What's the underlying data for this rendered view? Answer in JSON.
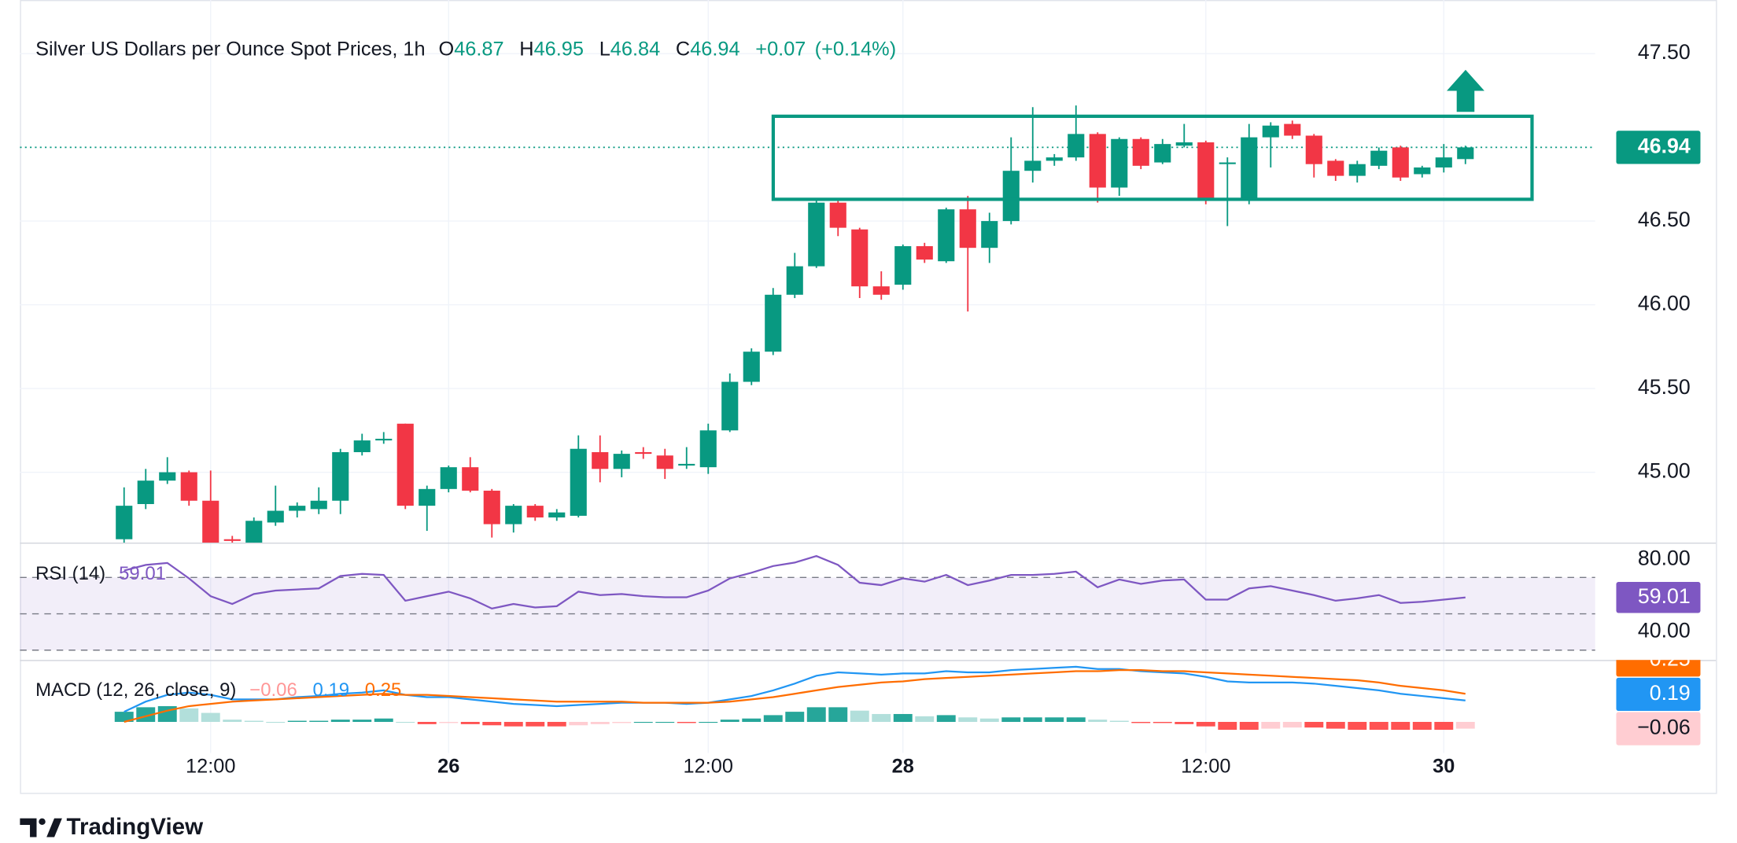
{
  "chart_data": {
    "type": "candlestick",
    "title": "Silver US Dollars per Ounce Spot Prices, 1h",
    "legend": {
      "open_label": "O",
      "open": 46.87,
      "high_label": "H",
      "high": 46.95,
      "low_label": "L",
      "low": 46.84,
      "close_label": "C",
      "close": 46.94,
      "change": {
        "value": 0.07,
        "label": "+0.07"
      },
      "change_pct": {
        "value": 0.14,
        "label": "(+0.14%)"
      }
    },
    "categories": [
      null,
      null,
      null,
      null,
      "12:00",
      null,
      null,
      null,
      null,
      null,
      null,
      null,
      null,
      null,
      null,
      "26",
      null,
      null,
      null,
      null,
      null,
      null,
      null,
      null,
      null,
      null,
      null,
      "12:00",
      null,
      null,
      null,
      null,
      null,
      null,
      null,
      null,
      "28",
      null,
      null,
      null,
      null,
      null,
      null,
      null,
      null,
      null,
      null,
      null,
      null,
      null,
      "12:00",
      null,
      null,
      null,
      null,
      null,
      null,
      null,
      null,
      null,
      null,
      "30",
      null
    ],
    "open": [
      44.6,
      44.81,
      44.95,
      45.0,
      44.83,
      44.6,
      44.58,
      44.7,
      44.77,
      44.78,
      44.83,
      45.12,
      45.19,
      45.29,
      44.8,
      44.9,
      45.03,
      44.89,
      44.69,
      44.8,
      44.73,
      44.74,
      45.12,
      45.02,
      45.12,
      45.1,
      45.04,
      45.03,
      45.25,
      45.54,
      45.72,
      46.06,
      46.23,
      46.61,
      46.45,
      46.11,
      46.12,
      46.35,
      46.26,
      46.57,
      46.34,
      46.5,
      46.8,
      46.86,
      46.88,
      47.02,
      46.7,
      46.99,
      46.85,
      46.95,
      46.97,
      46.84,
      46.63,
      47.0,
      47.08,
      47.01,
      46.86,
      46.77,
      46.83,
      46.94,
      46.78,
      46.82,
      46.87
    ],
    "high": [
      44.91,
      45.02,
      45.09,
      45.01,
      45.01,
      44.62,
      44.73,
      44.92,
      44.82,
      44.91,
      45.14,
      45.23,
      45.24,
      45.29,
      44.92,
      45.04,
      45.09,
      44.9,
      44.81,
      44.81,
      44.78,
      45.22,
      45.22,
      45.13,
      45.15,
      45.14,
      45.15,
      45.29,
      45.59,
      45.74,
      46.1,
      46.31,
      46.62,
      46.62,
      46.46,
      46.2,
      46.36,
      46.37,
      46.58,
      46.65,
      46.55,
      47.0,
      47.18,
      46.9,
      47.19,
      47.03,
      47.0,
      47.0,
      46.99,
      47.08,
      46.98,
      46.88,
      47.08,
      47.09,
      47.1,
      47.02,
      46.87,
      46.86,
      46.94,
      46.95,
      46.83,
      46.96,
      46.95
    ],
    "low": [
      44.55,
      44.78,
      44.93,
      44.8,
      44.55,
      44.55,
      44.55,
      44.68,
      44.73,
      44.75,
      44.75,
      45.1,
      45.17,
      44.78,
      44.65,
      44.88,
      44.88,
      44.61,
      44.64,
      44.71,
      44.71,
      44.73,
      44.94,
      44.97,
      45.08,
      44.96,
      45.02,
      44.99,
      45.24,
      45.52,
      45.7,
      46.04,
      46.22,
      46.41,
      46.04,
      46.03,
      46.09,
      46.25,
      46.25,
      45.96,
      46.25,
      46.48,
      46.73,
      46.83,
      46.86,
      46.61,
      46.65,
      46.81,
      46.84,
      46.94,
      46.6,
      46.47,
      46.6,
      46.82,
      46.99,
      46.76,
      46.74,
      46.73,
      46.81,
      46.74,
      46.76,
      46.79,
      46.84
    ],
    "close": [
      44.8,
      44.95,
      45.0,
      44.83,
      44.58,
      44.59,
      44.71,
      44.77,
      44.8,
      44.83,
      45.12,
      45.19,
      45.2,
      44.8,
      44.9,
      45.03,
      44.89,
      44.69,
      44.8,
      44.73,
      44.76,
      45.14,
      45.02,
      45.11,
      45.11,
      45.02,
      45.05,
      45.25,
      45.54,
      45.72,
      46.06,
      46.23,
      46.61,
      46.46,
      46.11,
      46.06,
      46.35,
      46.27,
      46.57,
      46.34,
      46.5,
      46.8,
      46.86,
      46.88,
      47.02,
      46.7,
      46.99,
      46.83,
      46.96,
      46.97,
      46.63,
      46.85,
      47.0,
      47.07,
      47.01,
      46.84,
      46.77,
      46.84,
      46.92,
      46.76,
      46.82,
      46.88,
      46.94
    ],
    "up_color": "#089981",
    "down_color": "#f23645",
    "ylim": [
      44.58,
      47.82
    ],
    "yticks": [
      {
        "value": 45,
        "label": "45.00"
      },
      {
        "value": 45.5,
        "label": "45.50"
      },
      {
        "value": 46,
        "label": "46.00"
      },
      {
        "value": 46.5,
        "label": "46.50"
      },
      {
        "value": 47.5,
        "label": "47.50"
      }
    ],
    "grid": true,
    "indicators": [
      {
        "type": "line",
        "name": "RSI (14)",
        "color": "#7e57c2",
        "values": [
          73.8,
          76.9,
          78,
          69.5,
          59.7,
          55.4,
          60.9,
          62.8,
          63.4,
          64,
          70.8,
          72,
          71.4,
          57.2,
          59.7,
          62.2,
          58.5,
          52.9,
          55.4,
          53.5,
          54.2,
          62.2,
          60.3,
          60.9,
          59.7,
          59.1,
          59.1,
          62.8,
          69.5,
          72.6,
          76.3,
          78.2,
          81.8,
          76.9,
          67.1,
          65.8,
          69.5,
          67.7,
          71.4,
          65.8,
          68.3,
          71.4,
          71.4,
          72,
          73.2,
          64.6,
          68.9,
          66.5,
          68.3,
          68.9,
          57.8,
          57.8,
          64,
          65.2,
          62.8,
          60.3,
          57.2,
          58.5,
          60.3,
          56,
          56.6,
          57.8,
          59.01
        ],
        "ylim": [
          24.6,
          89.2
        ],
        "yticks": [
          {
            "value": 80,
            "label": "80.00"
          },
          {
            "value": 40,
            "label": "40.00"
          }
        ],
        "bands": [
          70,
          50,
          30
        ]
      },
      {
        "type": "macd",
        "name": "MACD (12, 26, close, 9)",
        "ylim": [
          -0.63,
          0.55
        ],
        "histogram": {
          "colors": [
            "#26a69a",
            "#b2dfdb",
            "#ff5252",
            "#ffcdd2"
          ],
          "last_value_label": "−0.06",
          "values": [
            0.09,
            0.13,
            0.14,
            0.12,
            0.08,
            0.02,
            0.01,
            0.0,
            0.01,
            0.01,
            0.02,
            0.02,
            0.03,
            0.0,
            -0.02,
            -0.01,
            -0.02,
            -0.03,
            -0.04,
            -0.04,
            -0.04,
            -0.03,
            -0.02,
            -0.01,
            0.0,
            0.0,
            -0.01,
            0.0,
            0.02,
            0.03,
            0.06,
            0.09,
            0.13,
            0.13,
            0.1,
            0.07,
            0.07,
            0.05,
            0.06,
            0.04,
            0.03,
            0.04,
            0.04,
            0.04,
            0.04,
            0.02,
            0.01,
            -0.01,
            -0.01,
            -0.02,
            -0.04,
            -0.07,
            -0.07,
            -0.06,
            -0.05,
            -0.05,
            -0.06,
            -0.07,
            -0.07,
            -0.07,
            -0.07,
            -0.07,
            -0.06
          ]
        },
        "macd": {
          "color": "#2196f3",
          "values": [
            0.09,
            0.18,
            0.24,
            0.26,
            0.24,
            0.2,
            0.2,
            0.2,
            0.22,
            0.23,
            0.25,
            0.26,
            0.28,
            0.24,
            0.22,
            0.22,
            0.2,
            0.18,
            0.16,
            0.15,
            0.14,
            0.15,
            0.16,
            0.17,
            0.17,
            0.17,
            0.16,
            0.17,
            0.2,
            0.23,
            0.28,
            0.34,
            0.41,
            0.44,
            0.43,
            0.42,
            0.43,
            0.43,
            0.45,
            0.44,
            0.44,
            0.46,
            0.47,
            0.48,
            0.49,
            0.47,
            0.47,
            0.45,
            0.44,
            0.43,
            0.4,
            0.36,
            0.35,
            0.35,
            0.35,
            0.34,
            0.32,
            0.3,
            0.28,
            0.25,
            0.23,
            0.21,
            0.19
          ]
        },
        "signal": {
          "color": "#ff6d00",
          "values": [
            0.0,
            0.05,
            0.1,
            0.14,
            0.16,
            0.18,
            0.19,
            0.2,
            0.21,
            0.22,
            0.23,
            0.24,
            0.25,
            0.24,
            0.24,
            0.23,
            0.22,
            0.21,
            0.2,
            0.19,
            0.18,
            0.18,
            0.18,
            0.18,
            0.17,
            0.17,
            0.17,
            0.17,
            0.18,
            0.2,
            0.22,
            0.25,
            0.28,
            0.31,
            0.33,
            0.35,
            0.36,
            0.38,
            0.39,
            0.4,
            0.41,
            0.42,
            0.43,
            0.44,
            0.45,
            0.45,
            0.46,
            0.46,
            0.45,
            0.45,
            0.44,
            0.43,
            0.42,
            0.41,
            0.4,
            0.39,
            0.38,
            0.37,
            0.35,
            0.32,
            0.3,
            0.28,
            0.25
          ]
        }
      }
    ]
  },
  "footer": {
    "brand": "TradingView"
  }
}
